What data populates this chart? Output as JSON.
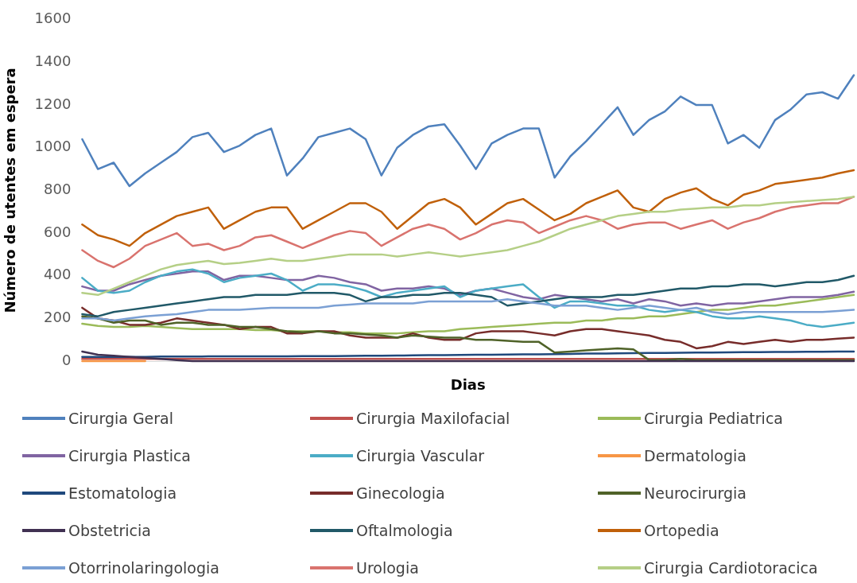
{
  "chart_data": {
    "type": "line",
    "xlabel": "Dias",
    "ylabel": "Número de utentes em espera",
    "categories": [
      null,
      null,
      null,
      null,
      null,
      null,
      null,
      null,
      null,
      null,
      null,
      null,
      null,
      null,
      null,
      null,
      null,
      null,
      null,
      null,
      null,
      null,
      null,
      null,
      null,
      null,
      null,
      null,
      null,
      null,
      null,
      null,
      null,
      null,
      null,
      null,
      null,
      null,
      null,
      null,
      null,
      null,
      null,
      null,
      null,
      null,
      null,
      null,
      null,
      null
    ],
    "ylim": [
      0,
      1600
    ],
    "yticks": [
      0,
      200,
      400,
      600,
      800,
      1000,
      1200,
      1400,
      1600
    ],
    "grid": false,
    "legend": "bottom",
    "marker": "none",
    "line_style": "solid",
    "series": [
      {
        "name": "Cirurgia Geral",
        "color": "#4f81bd",
        "values": [
          1040,
          900,
          930,
          820,
          880,
          930,
          980,
          1050,
          1070,
          980,
          1010,
          1060,
          1090,
          870,
          950,
          1050,
          1070,
          1090,
          1040,
          870,
          1000,
          1060,
          1100,
          1110,
          1010,
          900,
          1020,
          1060,
          1090,
          1090,
          860,
          960,
          1030,
          1110,
          1190,
          1060,
          1130,
          1170,
          1240,
          1200,
          1200,
          1020,
          1060,
          1000,
          1130,
          1180,
          1250,
          1260,
          1230,
          1340
        ]
      },
      {
        "name": "Cirurgia Maxilofacial",
        "color": "#c0504d",
        "values": [
          10,
          10,
          10,
          10,
          10,
          10,
          10,
          10,
          10,
          10,
          10,
          10,
          10,
          10,
          10,
          10,
          10,
          10,
          10,
          10,
          10,
          10,
          10,
          10,
          10,
          10,
          10,
          10,
          10,
          10,
          10,
          10,
          10,
          10,
          10,
          10,
          10,
          10,
          10,
          10,
          10,
          10,
          10,
          10,
          10,
          10,
          10,
          10,
          10,
          10
        ]
      },
      {
        "name": "Cirurgia Pediatrica",
        "color": "#9bbb59",
        "values": [
          175,
          165,
          160,
          160,
          165,
          160,
          155,
          150,
          150,
          150,
          150,
          145,
          145,
          140,
          140,
          140,
          135,
          135,
          130,
          130,
          130,
          135,
          140,
          140,
          150,
          155,
          160,
          165,
          170,
          175,
          180,
          180,
          190,
          190,
          200,
          200,
          210,
          210,
          220,
          230,
          240,
          240,
          250,
          260,
          260,
          270,
          280,
          290,
          300,
          310
        ]
      },
      {
        "name": "Cirurgia Plastica",
        "color": "#8064a2",
        "values": [
          350,
          330,
          330,
          360,
          380,
          400,
          410,
          420,
          420,
          380,
          400,
          400,
          390,
          380,
          380,
          400,
          390,
          370,
          360,
          330,
          340,
          340,
          350,
          340,
          310,
          330,
          340,
          320,
          300,
          290,
          310,
          300,
          290,
          280,
          290,
          270,
          290,
          280,
          260,
          270,
          260,
          270,
          270,
          280,
          290,
          300,
          300,
          300,
          310,
          325
        ]
      },
      {
        "name": "Cirurgia Vascular",
        "color": "#4bacc6",
        "values": [
          390,
          330,
          320,
          330,
          370,
          400,
          420,
          430,
          410,
          370,
          390,
          400,
          410,
          380,
          330,
          360,
          360,
          350,
          330,
          300,
          320,
          330,
          340,
          350,
          300,
          330,
          340,
          350,
          360,
          300,
          250,
          280,
          280,
          270,
          260,
          260,
          240,
          230,
          240,
          230,
          210,
          200,
          200,
          210,
          200,
          190,
          170,
          160,
          170,
          180
        ]
      },
      {
        "name": "Dermatologia",
        "color": "#f79646",
        "values": [
          0,
          0,
          0,
          0,
          0,
          null,
          null,
          null,
          null,
          null,
          null,
          null,
          null,
          null,
          null,
          null,
          null,
          null,
          null,
          null,
          null,
          null,
          null,
          null,
          null,
          null,
          null,
          null,
          null,
          null,
          null,
          null,
          null,
          null,
          null,
          null,
          null,
          null,
          null,
          null,
          null,
          null,
          null,
          null,
          null,
          null,
          null,
          null,
          null,
          null
        ]
      },
      {
        "name": "Estomatologia",
        "color": "#1f497d",
        "values": [
          20,
          20,
          20,
          20,
          20,
          21,
          21,
          21,
          22,
          22,
          22,
          22,
          22,
          22,
          23,
          23,
          23,
          24,
          25,
          25,
          26,
          27,
          28,
          28,
          29,
          30,
          30,
          31,
          32,
          32,
          33,
          34,
          35,
          35,
          36,
          37,
          38,
          38,
          39,
          40,
          40,
          41,
          42,
          42,
          43,
          43,
          44,
          44,
          45,
          45
        ]
      },
      {
        "name": "Ginecologia",
        "color": "#772c2a",
        "values": [
          250,
          200,
          190,
          170,
          170,
          180,
          200,
          190,
          180,
          170,
          150,
          160,
          160,
          130,
          130,
          140,
          140,
          120,
          110,
          110,
          110,
          130,
          110,
          100,
          100,
          130,
          140,
          140,
          140,
          130,
          120,
          140,
          150,
          150,
          140,
          130,
          120,
          100,
          90,
          60,
          70,
          90,
          80,
          90,
          100,
          90,
          100,
          100,
          105,
          110
        ]
      },
      {
        "name": "Neurocirurgia",
        "color": "#4f6228",
        "values": [
          210,
          200,
          180,
          190,
          190,
          170,
          180,
          180,
          170,
          170,
          160,
          160,
          150,
          140,
          135,
          140,
          130,
          130,
          125,
          120,
          110,
          120,
          115,
          110,
          110,
          100,
          100,
          95,
          90,
          90,
          40,
          45,
          50,
          55,
          60,
          55,
          5,
          5,
          10,
          5,
          5,
          5,
          5,
          5,
          5,
          5,
          5,
          5,
          5,
          5
        ]
      },
      {
        "name": "Obstetricia",
        "color": "#403152",
        "values": [
          45,
          30,
          25,
          20,
          15,
          10,
          5,
          0,
          0,
          0,
          0,
          0,
          0,
          0,
          0,
          0,
          0,
          0,
          0,
          0,
          0,
          0,
          0,
          0,
          0,
          0,
          0,
          0,
          0,
          0,
          0,
          0,
          0,
          0,
          0,
          0,
          0,
          0,
          0,
          0,
          0,
          0,
          0,
          0,
          0,
          0,
          0,
          0,
          0,
          0
        ]
      },
      {
        "name": "Oftalmologia",
        "color": "#215968",
        "values": [
          220,
          210,
          230,
          240,
          250,
          260,
          270,
          280,
          290,
          300,
          300,
          310,
          310,
          310,
          320,
          320,
          320,
          310,
          280,
          300,
          300,
          310,
          310,
          320,
          320,
          310,
          300,
          260,
          270,
          280,
          290,
          300,
          300,
          300,
          310,
          310,
          320,
          330,
          340,
          340,
          350,
          350,
          360,
          360,
          350,
          360,
          370,
          370,
          380,
          400
        ]
      },
      {
        "name": "Ortopedia",
        "color": "#c0600a",
        "values": [
          640,
          590,
          570,
          540,
          600,
          640,
          680,
          700,
          720,
          620,
          660,
          700,
          720,
          720,
          620,
          660,
          700,
          740,
          740,
          700,
          620,
          680,
          740,
          760,
          720,
          640,
          690,
          740,
          760,
          710,
          660,
          690,
          740,
          770,
          800,
          720,
          700,
          760,
          790,
          810,
          760,
          730,
          780,
          800,
          830,
          840,
          850,
          860,
          880,
          895
        ]
      },
      {
        "name": "Otorrinolaringologia",
        "color": "#7ba0d4",
        "values": [
          200,
          200,
          190,
          200,
          210,
          215,
          220,
          230,
          240,
          240,
          240,
          245,
          250,
          250,
          250,
          250,
          260,
          265,
          270,
          270,
          270,
          270,
          280,
          280,
          280,
          280,
          280,
          290,
          280,
          270,
          260,
          260,
          260,
          250,
          240,
          250,
          260,
          250,
          240,
          250,
          230,
          220,
          230,
          230,
          230,
          230,
          230,
          230,
          235,
          240
        ]
      },
      {
        "name": "Urologia",
        "color": "#d9736e",
        "values": [
          520,
          470,
          440,
          480,
          540,
          570,
          600,
          540,
          550,
          520,
          540,
          580,
          590,
          560,
          530,
          560,
          590,
          610,
          600,
          540,
          580,
          620,
          640,
          620,
          570,
          600,
          640,
          660,
          650,
          600,
          630,
          660,
          680,
          660,
          620,
          640,
          650,
          650,
          620,
          640,
          660,
          620,
          650,
          670,
          700,
          720,
          730,
          740,
          740,
          770
        ]
      },
      {
        "name": "Cirurgia Cardiotoracica",
        "color": "#b5cf86",
        "values": [
          320,
          310,
          340,
          370,
          400,
          430,
          450,
          460,
          470,
          455,
          460,
          470,
          480,
          470,
          470,
          480,
          490,
          500,
          500,
          500,
          490,
          500,
          510,
          500,
          490,
          500,
          510,
          520,
          540,
          560,
          590,
          620,
          640,
          660,
          680,
          690,
          700,
          700,
          710,
          715,
          720,
          720,
          730,
          730,
          740,
          745,
          750,
          755,
          760,
          770
        ]
      }
    ]
  }
}
